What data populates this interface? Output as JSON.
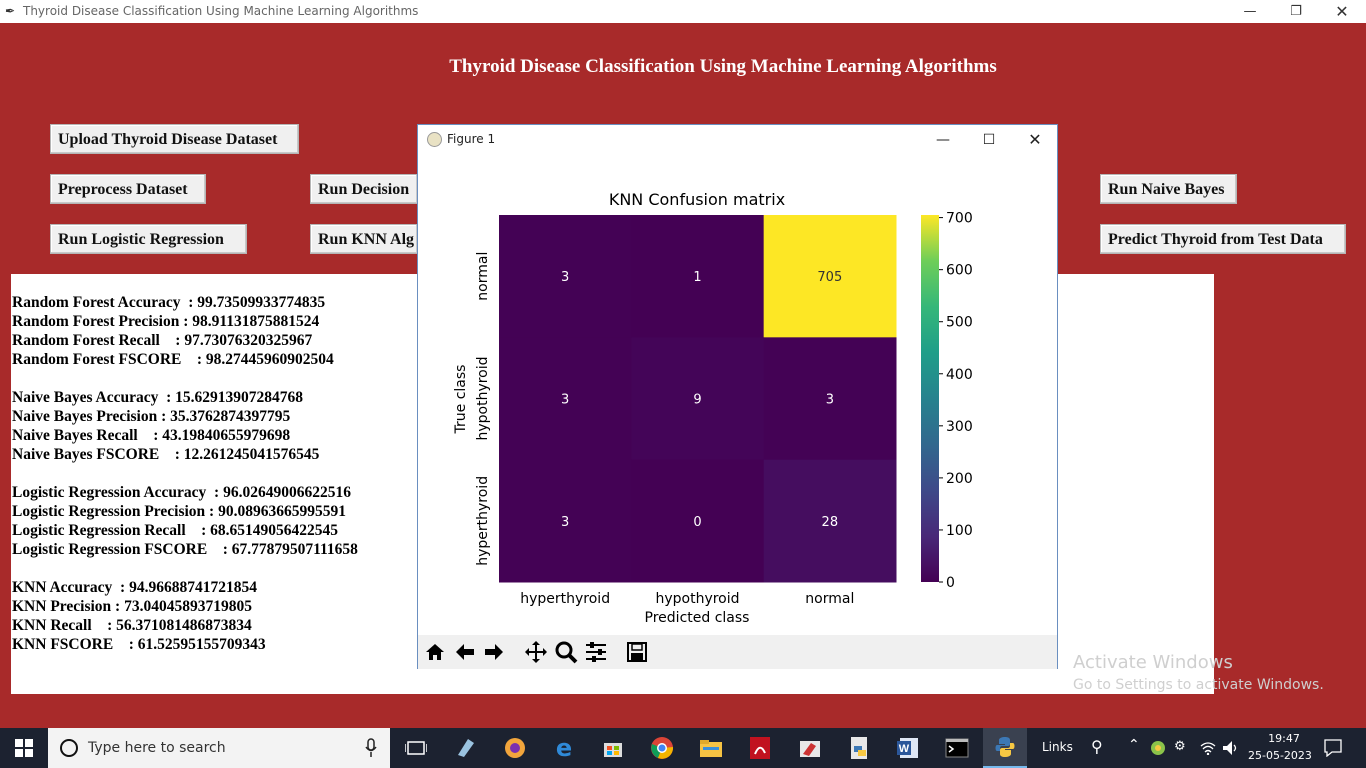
{
  "window": {
    "title": "Thyroid Disease Classification Using Machine Learning Algorithms"
  },
  "app": {
    "heading": "Thyroid Disease Classification Using Machine Learning Algorithms",
    "buttons": {
      "upload": "Upload Thyroid Disease Dataset",
      "preprocess": "Preprocess Dataset",
      "run_decision": "Run Decision",
      "run_naive": "Run Naive Bayes",
      "run_logistic": "Run Logistic Regression",
      "run_knn": "Run KNN Alg",
      "predict": "Predict Thyroid from Test Data"
    },
    "results": [
      "Random Forest Accuracy  : 99.73509933774835",
      "Random Forest Precision : 98.91131875881524",
      "Random Forest Recall    : 97.73076320325967",
      "Random Forest FSCORE    : 98.27445960902504",
      "",
      "Naive Bayes Accuracy  : 15.62913907284768",
      "Naive Bayes Precision : 35.3762874397795",
      "Naive Bayes Recall    : 43.19840655979698",
      "Naive Bayes FSCORE    : 12.261245041576545",
      "",
      "Logistic Regression Accuracy  : 96.02649006622516",
      "Logistic Regression Precision : 90.08963665995591",
      "Logistic Regression Recall    : 68.65149056422545",
      "Logistic Regression FSCORE    : 67.77879507111658",
      "",
      "KNN Accuracy  : 94.96688741721854",
      "KNN Precision : 73.04045893719805",
      "KNN Recall    : 56.371081486873834",
      "KNN FSCORE    : 61.52595155709343"
    ]
  },
  "figure": {
    "window_title": "Figure 1",
    "colors": {
      "border": "#6a8fc0"
    }
  },
  "chart_data": {
    "type": "heatmap",
    "title": "KNN Confusion matrix",
    "xlabel": "Predicted class",
    "ylabel": "True class",
    "x_categories": [
      "hyperthyroid",
      "hypothyroid",
      "normal"
    ],
    "y_categories": [
      "normal",
      "hypothyroid",
      "hyperthyroid"
    ],
    "values": [
      [
        3,
        1,
        705
      ],
      [
        3,
        9,
        3
      ],
      [
        3,
        0,
        28
      ]
    ],
    "colormap": "viridis",
    "colorbar": {
      "min": 0,
      "max": 705,
      "ticks": [
        0,
        100,
        200,
        300,
        400,
        500,
        600,
        700
      ]
    }
  },
  "watermark": {
    "line1": "Activate Windows",
    "line2": "Go to Settings to activate Windows."
  },
  "taskbar": {
    "search_placeholder": "Type here to search",
    "links_label": "Links",
    "time": "19:47",
    "date": "25-05-2023"
  }
}
